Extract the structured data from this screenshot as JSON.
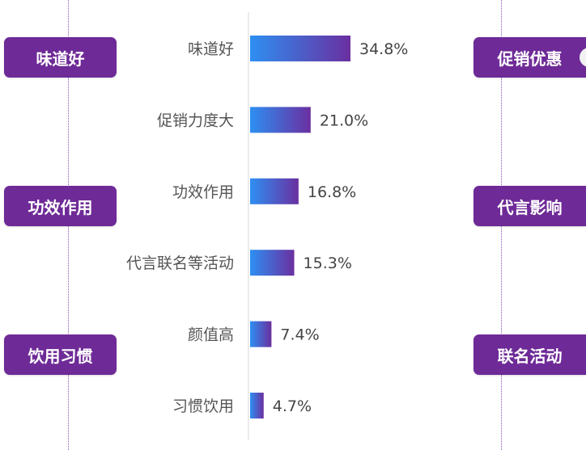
{
  "left_tags": [
    "味道好",
    "功效作用",
    "饮用习惯"
  ],
  "right_tags": [
    "促销优惠",
    "代言影响",
    "联名活动"
  ],
  "colors": {
    "tag_bg": "#6e2a97",
    "bar_start": "#2e8ff2",
    "bar_end": "#6a2fa0"
  },
  "chart_data": {
    "type": "bar",
    "orientation": "horizontal",
    "title": "",
    "xlabel": "",
    "ylabel": "",
    "categories": [
      "味道好",
      "促销力度大",
      "功效作用",
      "代言联名等活动",
      "颜值高",
      "习惯饮用"
    ],
    "values": [
      34.8,
      21.0,
      16.8,
      15.3,
      7.4,
      4.7
    ],
    "value_labels": [
      "34.8%",
      "21.0%",
      "16.8%",
      "15.3%",
      "7.4%",
      "4.7%"
    ],
    "unit": "%",
    "xlim": [
      0,
      40
    ],
    "grid": false,
    "legend": "none"
  }
}
